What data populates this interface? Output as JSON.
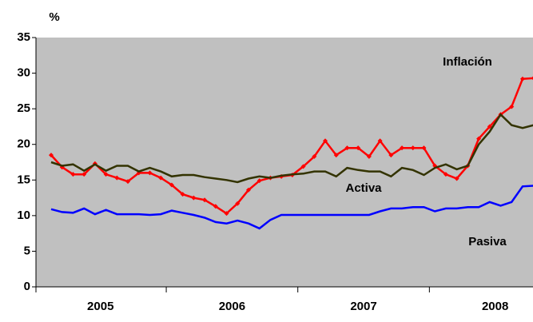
{
  "chart_data": {
    "type": "line",
    "y_label": "%",
    "categories": [
      null,
      null,
      null,
      null,
      null,
      "2005",
      null,
      null,
      null,
      null,
      null,
      null,
      null,
      null,
      null,
      null,
      null,
      "2006",
      null,
      null,
      null,
      null,
      null,
      null,
      null,
      null,
      null,
      null,
      null,
      "2007",
      null,
      null,
      null,
      null,
      null,
      null,
      null,
      null,
      null,
      null,
      null,
      "2008",
      null,
      null,
      null
    ],
    "series": [
      {
        "name": "Inflación",
        "color": "#ff0000",
        "values": [
          18.5,
          16.8,
          15.8,
          15.8,
          17.3,
          15.8,
          15.3,
          14.8,
          16,
          16,
          15.3,
          14.3,
          13,
          12.5,
          12.2,
          11.3,
          10.3,
          11.7,
          13.6,
          14.9,
          15.3,
          15.5,
          15.7,
          16.9,
          18.3,
          20.5,
          18.5,
          19.5,
          19.5,
          18.3,
          20.5,
          18.5,
          19.5,
          19.5,
          19.5,
          17,
          15.8,
          15.2,
          17,
          20.8,
          22.5,
          24.2,
          25.3,
          29.2,
          29.3
        ]
      },
      {
        "name": "Activa",
        "color": "#333300",
        "values": [
          17.5,
          17,
          17.2,
          16.3,
          17.2,
          16.3,
          17,
          17,
          16.2,
          16.7,
          16.2,
          15.5,
          15.7,
          15.7,
          15.4,
          15.2,
          15,
          14.7,
          15.2,
          15.5,
          15.3,
          15.6,
          15.8,
          15.9,
          16.2,
          16.2,
          15.5,
          16.7,
          16.4,
          16.2,
          16.2,
          15.5,
          16.7,
          16.4,
          15.7,
          16.7,
          17.2,
          16.5,
          17,
          20,
          21.8,
          24.2,
          22.7,
          22.3,
          22.7
        ]
      },
      {
        "name": "Pasiva",
        "color": "#0000ff",
        "values": [
          10.9,
          10.5,
          10.4,
          11,
          10.2,
          10.8,
          10.2,
          10.2,
          10.2,
          10.1,
          10.2,
          10.7,
          10.4,
          10.1,
          9.7,
          9.1,
          8.9,
          9.3,
          8.9,
          8.2,
          9.4,
          10.1,
          10.1,
          10.1,
          10.1,
          10.1,
          10.1,
          10.1,
          10.1,
          10.1,
          10.6,
          11,
          11,
          11.2,
          11.2,
          10.6,
          11,
          11,
          11.2,
          11.2,
          11.9,
          11.4,
          11.9,
          14.1,
          14.2
        ]
      }
    ],
    "ylim": [
      0,
      35
    ],
    "yticks": [
      0,
      5,
      10,
      15,
      20,
      25,
      30,
      35
    ],
    "background": "#c0c0c0"
  }
}
